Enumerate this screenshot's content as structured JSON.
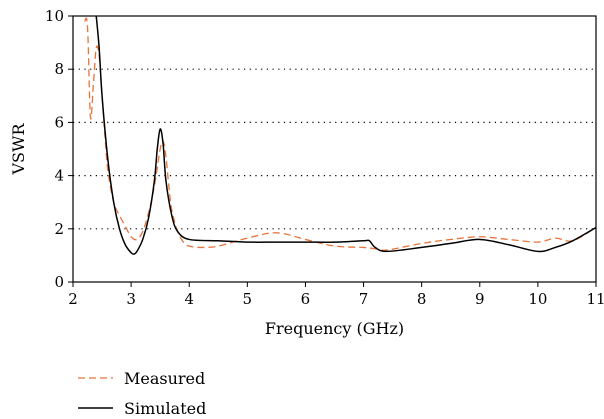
{
  "chart_data": {
    "type": "line",
    "title": "",
    "xlabel": "Frequency (GHz)",
    "ylabel": "VSWR",
    "xlim": [
      2,
      11
    ],
    "ylim": [
      0,
      10
    ],
    "xticks": [
      2,
      3,
      4,
      5,
      6,
      7,
      8,
      9,
      10,
      11
    ],
    "yticks": [
      0,
      2,
      4,
      6,
      8,
      10
    ],
    "grid": "horizontal dotted",
    "legend_position": "bottom-left",
    "series": [
      {
        "name": "Measured",
        "color": "#e8743b",
        "style": "dashed",
        "x": [
          2.2,
          2.25,
          2.3,
          2.35,
          2.4,
          2.45,
          2.5,
          2.55,
          2.6,
          2.7,
          2.8,
          2.9,
          3.0,
          3.1,
          3.2,
          3.3,
          3.4,
          3.5,
          3.55,
          3.6,
          3.65,
          3.7,
          3.8,
          3.9,
          4.0,
          4.2,
          4.5,
          5.0,
          5.5,
          6.0,
          6.5,
          7.0,
          7.2,
          7.4,
          8.0,
          8.5,
          9.0,
          9.5,
          10.0,
          10.3,
          10.6,
          11.0
        ],
        "y": [
          9.8,
          9.6,
          6.2,
          7.4,
          8.8,
          8.5,
          7.0,
          5.5,
          4.2,
          3.0,
          2.5,
          2.1,
          1.7,
          1.6,
          1.9,
          2.6,
          3.6,
          5.0,
          5.3,
          4.7,
          3.6,
          2.7,
          1.9,
          1.5,
          1.35,
          1.3,
          1.35,
          1.65,
          1.85,
          1.6,
          1.35,
          1.3,
          1.25,
          1.2,
          1.45,
          1.6,
          1.7,
          1.6,
          1.5,
          1.65,
          1.55,
          2.05
        ]
      },
      {
        "name": "Simulated",
        "color": "#000000",
        "style": "solid",
        "x": [
          2.4,
          2.45,
          2.5,
          2.6,
          2.7,
          2.8,
          2.9,
          3.0,
          3.05,
          3.1,
          3.2,
          3.3,
          3.4,
          3.45,
          3.5,
          3.55,
          3.6,
          3.7,
          3.8,
          4.0,
          4.5,
          5.0,
          5.5,
          6.0,
          6.5,
          7.0,
          7.1,
          7.2,
          7.4,
          8.0,
          8.5,
          9.0,
          9.5,
          10.0,
          10.3,
          10.6,
          11.0
        ],
        "y": [
          10,
          8.8,
          7.0,
          4.6,
          3.0,
          2.0,
          1.4,
          1.1,
          1.05,
          1.15,
          1.6,
          2.4,
          3.8,
          5.0,
          5.75,
          5.2,
          3.8,
          2.5,
          1.9,
          1.6,
          1.55,
          1.5,
          1.5,
          1.5,
          1.5,
          1.55,
          1.55,
          1.3,
          1.15,
          1.3,
          1.45,
          1.6,
          1.4,
          1.15,
          1.3,
          1.55,
          2.05
        ]
      }
    ]
  }
}
